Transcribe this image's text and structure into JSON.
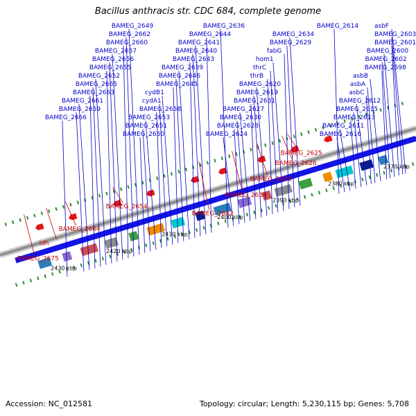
{
  "title": "Bacillus anthracis str. CDC 684, complete genome",
  "footer": {
    "accession": "Accession: NC_012581",
    "summary": "Topology: circular; Length: 5,230,115 bp; Genes: 5,708"
  },
  "colors": {
    "forward_label": "#0000c8",
    "reverse_label": "#c80000",
    "forward_arrow": "#1414e6",
    "reverse_arrow": "#e61414",
    "backbone": "#909090",
    "gc_tick": "#2a8a2a"
  },
  "scale": {
    "unit": "kbp",
    "ticks": [
      {
        "kbp": 2370,
        "label": "2370 kbp"
      },
      {
        "kbp": 2380,
        "label": "2380 kbp"
      },
      {
        "kbp": 2390,
        "label": "2390 kbp"
      },
      {
        "kbp": 2400,
        "label": "2400 kbp"
      },
      {
        "kbp": 2410,
        "label": "2410 kbp"
      },
      {
        "kbp": 2420,
        "label": "2420 kbp"
      },
      {
        "kbp": 2430,
        "label": "2430 kbp"
      }
    ]
  },
  "forward_labels": [
    {
      "text": "asbF",
      "kbp": 2369.0
    },
    {
      "text": "BAMEG_2603",
      "kbp": 2369.5
    },
    {
      "text": "BAMEG_2601",
      "kbp": 2370.2
    },
    {
      "text": "BAMEG_2600",
      "kbp": 2371.0
    },
    {
      "text": "BAMEG_2602",
      "kbp": 2371.8
    },
    {
      "text": "BAMEG_2598",
      "kbp": 2372.4
    },
    {
      "text": "asbB",
      "kbp": 2373.5
    },
    {
      "text": "asbA",
      "kbp": 2374.5
    },
    {
      "text": "asbC",
      "kbp": 2375.2
    },
    {
      "text": "BAMEG_2612",
      "kbp": 2376.0
    },
    {
      "text": "BAMEG_2615",
      "kbp": 2377.0
    },
    {
      "text": "BAMEG_2613",
      "kbp": 2378.0
    },
    {
      "text": "BAMEG_2611",
      "kbp": 2379.0
    },
    {
      "text": "BAMEG_2616",
      "kbp": 2380.0
    },
    {
      "text": "BAMEG_2614",
      "kbp": 2381.0
    },
    {
      "text": "BAMEG_2634",
      "kbp": 2388.0
    },
    {
      "text": "BAMEG_2629",
      "kbp": 2389.0
    },
    {
      "text": "fabG",
      "kbp": 2390.0
    },
    {
      "text": "hom1",
      "kbp": 2391.0
    },
    {
      "text": "thrC",
      "kbp": 2392.0
    },
    {
      "text": "thrB",
      "kbp": 2393.0
    },
    {
      "text": "BAMEG_2620",
      "kbp": 2394.0
    },
    {
      "text": "BAMEG_2619",
      "kbp": 2395.0
    },
    {
      "text": "BAMEG_2631",
      "kbp": 2396.0
    },
    {
      "text": "BAMEG_2627",
      "kbp": 2397.0
    },
    {
      "text": "BAMEG_2630",
      "kbp": 2398.0
    },
    {
      "text": "BAMEG_2628",
      "kbp": 2399.0
    },
    {
      "text": "BAMEG_2624",
      "kbp": 2400.0
    },
    {
      "text": "BAMEG_2636",
      "kbp": 2401.0
    },
    {
      "text": "BAMEG_2644",
      "kbp": 2404.0
    },
    {
      "text": "BAMEG_2641",
      "kbp": 2405.0
    },
    {
      "text": "BAMEG_2640",
      "kbp": 2406.0
    },
    {
      "text": "BAMEG_2643",
      "kbp": 2407.0
    },
    {
      "text": "BAMEG_2639",
      "kbp": 2408.0
    },
    {
      "text": "BAMEG_2646",
      "kbp": 2409.0
    },
    {
      "text": "BAMEG_2645",
      "kbp": 2410.0
    },
    {
      "text": "cydB1",
      "kbp": 2411.0
    },
    {
      "text": "cydA1",
      "kbp": 2412.0
    },
    {
      "text": "BAMEG_2658",
      "kbp": 2413.0
    },
    {
      "text": "BAMEG_2653",
      "kbp": 2414.0
    },
    {
      "text": "BAMEG_2651",
      "kbp": 2415.0
    },
    {
      "text": "BAMEG_2650",
      "kbp": 2416.0
    },
    {
      "text": "BAMEG_2649",
      "kbp": 2417.0
    },
    {
      "text": "BAMEG_2662",
      "kbp": 2418.0
    },
    {
      "text": "BAMEG_2660",
      "kbp": 2419.0
    },
    {
      "text": "BAMEG_2657",
      "kbp": 2420.0
    },
    {
      "text": "BAMEG_2656",
      "kbp": 2421.0
    },
    {
      "text": "BAMEG_2655",
      "kbp": 2422.0
    },
    {
      "text": "BAMEG_2652",
      "kbp": 2423.0
    },
    {
      "text": "BAMEG_2665",
      "kbp": 2424.0
    },
    {
      "text": "BAMEG_2663",
      "kbp": 2425.0
    },
    {
      "text": "BAMEG_2661",
      "kbp": 2426.0
    },
    {
      "text": "BAMEG_2659",
      "kbp": 2427.0
    },
    {
      "text": "BAMEG_2666",
      "kbp": 2430.0
    }
  ],
  "reverse_labels": [
    {
      "text": "BAMEG_2625",
      "kbp": 2386.5
    },
    {
      "text": "BAMEG_2626",
      "kbp": 2387.5
    },
    {
      "text": "BAMEG_2633",
      "kbp": 2392.0
    },
    {
      "text": "BAMEG_2638",
      "kbp": 2396.5
    },
    {
      "text": "BAMEG_2642",
      "kbp": 2402.5
    },
    {
      "text": "BAMEG_2654",
      "kbp": 2418.0
    },
    {
      "text": "BAMEG_2664",
      "kbp": 2426.5
    },
    {
      "text": "ldh",
      "kbp": 2430.0
    },
    {
      "text": "BAMEG_2675",
      "kbp": 2434.0
    }
  ]
}
